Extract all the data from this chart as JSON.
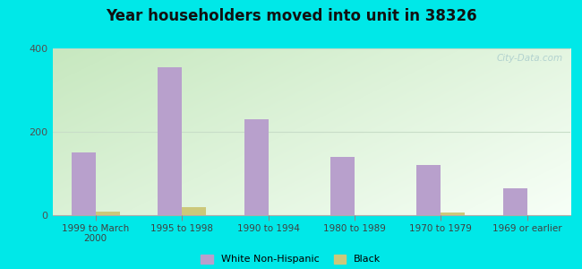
{
  "title": "Year householders moved into unit in 38326",
  "categories": [
    "1999 to March\n2000",
    "1995 to 1998",
    "1990 to 1994",
    "1980 to 1989",
    "1970 to 1979",
    "1969 or earlier"
  ],
  "white_values": [
    150,
    355,
    230,
    140,
    120,
    65
  ],
  "black_values": [
    8,
    20,
    0,
    0,
    6,
    0
  ],
  "white_color": "#b8a0cc",
  "black_color": "#ccc87a",
  "ylim": [
    0,
    400
  ],
  "yticks": [
    0,
    200,
    400
  ],
  "background_outer": "#00e8e8",
  "bar_width": 0.28,
  "watermark": "City-Data.com",
  "legend_white": "White Non-Hispanic",
  "legend_black": "Black",
  "grid_color": "#d0e8d0",
  "bg_left": "#c8e8c0",
  "bg_right": "#f0f8f0"
}
